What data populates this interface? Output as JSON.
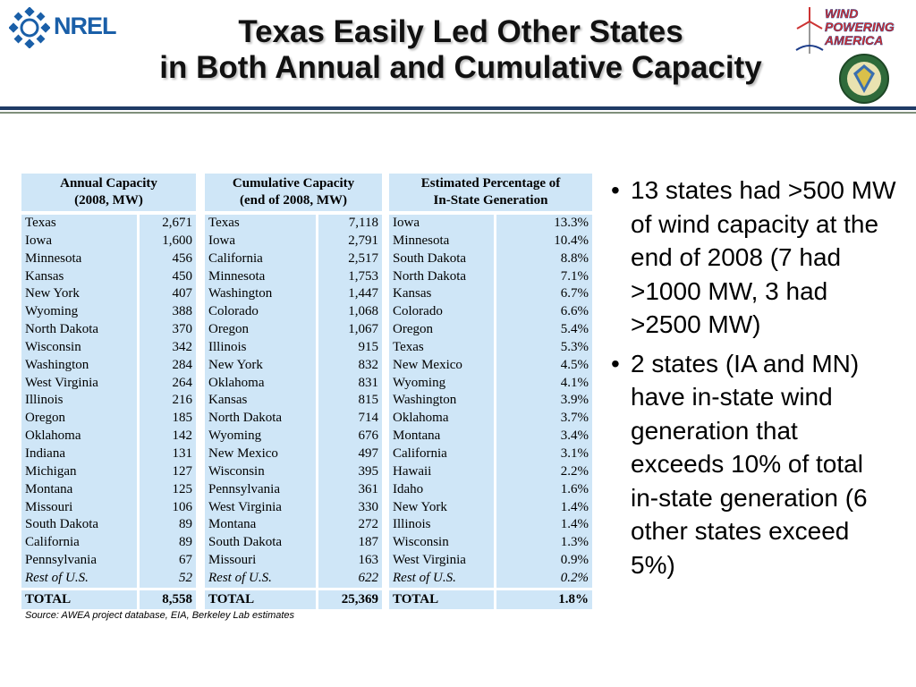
{
  "header": {
    "title_line1": "Texas Easily Led Other States",
    "title_line2": "in Both Annual and Cumulative Capacity",
    "logo_left_text": "NREL",
    "logo_right_text": [
      "WIND",
      "POWERING",
      "AMERICA"
    ]
  },
  "tables": [
    {
      "header_line1": "Annual Capacity",
      "header_line2": "(2008, MW)",
      "rows": [
        {
          "state": "Texas",
          "value": "2,671"
        },
        {
          "state": "Iowa",
          "value": "1,600"
        },
        {
          "state": "Minnesota",
          "value": "456"
        },
        {
          "state": "Kansas",
          "value": "450"
        },
        {
          "state": "New York",
          "value": "407"
        },
        {
          "state": "Wyoming",
          "value": "388"
        },
        {
          "state": "North Dakota",
          "value": "370"
        },
        {
          "state": "Wisconsin",
          "value": "342"
        },
        {
          "state": "Washington",
          "value": "284"
        },
        {
          "state": "West Virginia",
          "value": "264"
        },
        {
          "state": "Illinois",
          "value": "216"
        },
        {
          "state": "Oregon",
          "value": "185"
        },
        {
          "state": "Oklahoma",
          "value": "142"
        },
        {
          "state": "Indiana",
          "value": "131"
        },
        {
          "state": "Michigan",
          "value": "127"
        },
        {
          "state": "Montana",
          "value": "125"
        },
        {
          "state": "Missouri",
          "value": "106"
        },
        {
          "state": "South Dakota",
          "value": "89"
        },
        {
          "state": "California",
          "value": "89"
        },
        {
          "state": "Pennsylvania",
          "value": "67"
        },
        {
          "state": "Rest of U.S.",
          "value": "52"
        }
      ],
      "total_label": "TOTAL",
      "total_value": "8,558"
    },
    {
      "header_line1": "Cumulative Capacity",
      "header_line2": "(end of 2008, MW)",
      "rows": [
        {
          "state": "Texas",
          "value": "7,118"
        },
        {
          "state": "Iowa",
          "value": "2,791"
        },
        {
          "state": "California",
          "value": "2,517"
        },
        {
          "state": "Minnesota",
          "value": "1,753"
        },
        {
          "state": "Washington",
          "value": "1,447"
        },
        {
          "state": "Colorado",
          "value": "1,068"
        },
        {
          "state": "Oregon",
          "value": "1,067"
        },
        {
          "state": "Illinois",
          "value": "915"
        },
        {
          "state": "New York",
          "value": "832"
        },
        {
          "state": "Oklahoma",
          "value": "831"
        },
        {
          "state": "Kansas",
          "value": "815"
        },
        {
          "state": "North Dakota",
          "value": "714"
        },
        {
          "state": "Wyoming",
          "value": "676"
        },
        {
          "state": "New Mexico",
          "value": "497"
        },
        {
          "state": "Wisconsin",
          "value": "395"
        },
        {
          "state": "Pennsylvania",
          "value": "361"
        },
        {
          "state": "West Virginia",
          "value": "330"
        },
        {
          "state": "Montana",
          "value": "272"
        },
        {
          "state": "South Dakota",
          "value": "187"
        },
        {
          "state": "Missouri",
          "value": "163"
        },
        {
          "state": "Rest of U.S.",
          "value": "622"
        }
      ],
      "total_label": "TOTAL",
      "total_value": "25,369"
    },
    {
      "header_line1": "Estimated Percentage of",
      "header_line2": "In-State Generation",
      "rows": [
        {
          "state": "Iowa",
          "value": "13.3%"
        },
        {
          "state": "Minnesota",
          "value": "10.4%"
        },
        {
          "state": "South Dakota",
          "value": "8.8%"
        },
        {
          "state": "North Dakota",
          "value": "7.1%"
        },
        {
          "state": "Kansas",
          "value": "6.7%"
        },
        {
          "state": "Colorado",
          "value": "6.6%"
        },
        {
          "state": "Oregon",
          "value": "5.4%"
        },
        {
          "state": "Texas",
          "value": "5.3%"
        },
        {
          "state": "New Mexico",
          "value": "4.5%"
        },
        {
          "state": "Wyoming",
          "value": "4.1%"
        },
        {
          "state": "Washington",
          "value": "3.9%"
        },
        {
          "state": "Oklahoma",
          "value": "3.7%"
        },
        {
          "state": "Montana",
          "value": "3.4%"
        },
        {
          "state": "California",
          "value": "3.1%"
        },
        {
          "state": "Hawaii",
          "value": "2.2%"
        },
        {
          "state": "Idaho",
          "value": "1.6%"
        },
        {
          "state": "New York",
          "value": "1.4%"
        },
        {
          "state": "Illinois",
          "value": "1.4%"
        },
        {
          "state": "Wisconsin",
          "value": "1.3%"
        },
        {
          "state": "West Virginia",
          "value": "0.9%"
        },
        {
          "state": "Rest of U.S.",
          "value": "0.2%"
        }
      ],
      "total_label": "TOTAL",
      "total_value": "1.8%"
    }
  ],
  "source": "Source:  AWEA project database, EIA, Berkeley Lab estimates",
  "bullets": [
    "13 states had >500 MW of wind capacity at the end of 2008 (7 had >1000 MW, 3 had >2500 MW)",
    "2 states (IA and MN) have in-state wind generation that exceeds 10% of total in-state generation (6 other states exceed 5%)"
  ],
  "colors": {
    "table_fill": "#cfe6f7",
    "rule_dark": "#1f3b66",
    "rule_light": "#7f8f7a",
    "nrel_blue": "#1a5fa8"
  }
}
